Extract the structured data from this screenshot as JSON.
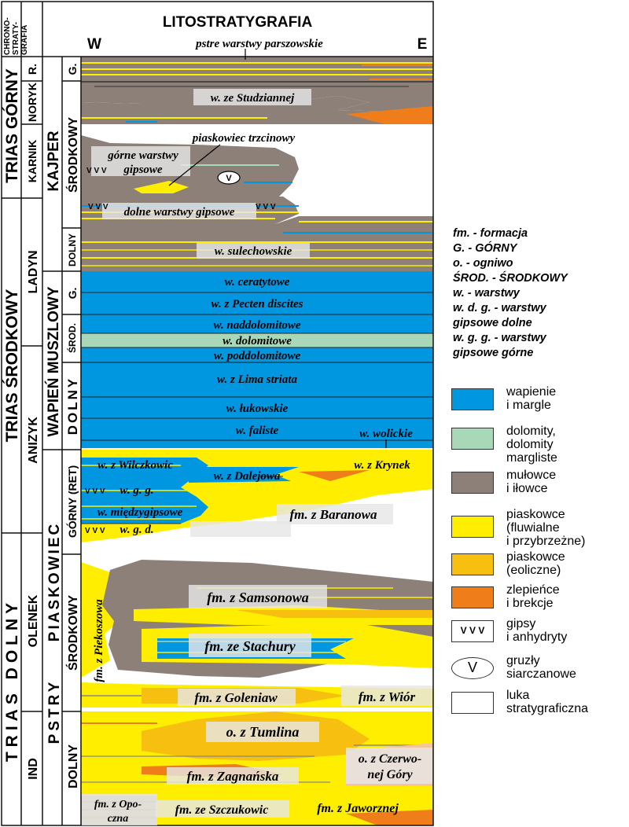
{
  "header": {
    "chronostrat_lines": [
      "CHRONO-",
      "STRATY-",
      "GRAFIA"
    ],
    "lithostrat_title": "LITOSTRATYGRAFIA",
    "west": "W",
    "east": "E",
    "top_unit": "pstre warstwy parszowskie"
  },
  "system_labels": {
    "upper": "TRIAS GÓRNY",
    "middle": "TRIAS ŚRODKOWY",
    "lower": "TRIAS DOLNY"
  },
  "stage_labels": {
    "rhaetian": "R.",
    "norian": "NORYK",
    "carnian": "KARNIK",
    "ladinian": "LADYN",
    "anisian": "ANIZYK",
    "olenekian": "OLENEK",
    "induan": "IND"
  },
  "group_labels": {
    "keuper": "KAJPER",
    "muschelkalk": "WAPIEŃ MUSZLOWY",
    "buntsandstein_1": "PIASKOWIEC",
    "buntsandstein_2": "PSTRY"
  },
  "subdivision_labels": {
    "keuper_upper": "G.",
    "keuper_middle": "ŚRODKOWY",
    "keuper_lower": "DOLNY",
    "mk_upper": "G.",
    "mk_middle": "ŚROD.",
    "mk_lower": "DOLNY",
    "bs_upper": "GÓRNY (RET)",
    "bs_middle": "ŚRODKOWY",
    "bs_lower": "DOLNY"
  },
  "units": {
    "studzianna": "w. ze Studziannej",
    "reed_sandstone": "piaskowiec trzcinowy",
    "upper_gypsum_1": "górne warstwy",
    "upper_gypsum_2": "gipsowe",
    "lower_gypsum": "dolne warstwy gipsowe",
    "sulechow": "w. sulechowskie",
    "ceratite": "w. ceratytowe",
    "pecten": "w. z Pecten discites",
    "naddolomit": "w. naddolomitowe",
    "dolomit": "w. dolomitowe",
    "poddolomit": "w. poddolomitowe",
    "lima": "w. z Lima striata",
    "lukow": "w. łukowskie",
    "faliste": "w. faliste",
    "wolica": "w. wolickie",
    "wilczkowice": "w. z Wilczkowic",
    "dalejow": "w. z Dalejowa",
    "krynek": "w. z Krynek",
    "wgg": "w. g. g.",
    "miedzygips": "w. międzygipsowe",
    "wgd": "w. g. d.",
    "baranow": "fm. z Baranowa",
    "samsonow": "fm. z Samsonowa",
    "stachura": "fm. ze Stachury",
    "piekoszow": "fm. z Piekoszowa",
    "goleniow": "fm. z Goleniaw",
    "wior": "fm. z Wiór",
    "tumlin": "o. z Tumlina",
    "czerwona_1": "o. z Czerwo-",
    "czerwona_2": "nej Góry",
    "zagnansk": "fm. z Zagnańska",
    "opoczno_1": "fm. z Opo-",
    "opoczno_2": "czna",
    "szczukowice": "fm. ze Szczukowic",
    "jaworzno": "fm. z Jaworznej"
  },
  "gypsum_marks": "V V V",
  "nodule_mark": "V",
  "abbreviations": [
    "fm. - formacja",
    "G. - GÓRNY",
    "o. - ogniwo",
    "ŚROD. - ŚRODKOWY",
    "w. - warstwy",
    "w. d. g. - warstwy",
    "gipsowe dolne",
    "w. g. g.  - warstwy",
    "gipsowe górne"
  ],
  "legend": [
    {
      "label": "wapienie\ni margle",
      "color": "#0096e0"
    },
    {
      "label": "dolomity,\ndolomity\nmargliste",
      "color": "#a8d8b8"
    },
    {
      "label": "mułowce\ni iłowce",
      "color": "#8c8079"
    },
    {
      "label": "piaskowce\n(fluwialne\ni przybrzeżne)",
      "color": "#ffee00"
    },
    {
      "label": "piaskowce\n(eoliczne)",
      "color": "#f7bf10"
    },
    {
      "label": "zlepieńce\ni brekcje",
      "color": "#ef7d1a"
    },
    {
      "label": "gipsy\ni anhydryty",
      "symbol": "V V V"
    },
    {
      "label": "gruzły\nsiarczanowe",
      "symbol": "V"
    },
    {
      "label": "luka\nstratygraficzna",
      "color": "#ffffff"
    }
  ],
  "colors": {
    "limestone": "#0096e0",
    "dolomite": "#a8d8b8",
    "mudstone": "#8c8079",
    "fluvial_sandstone": "#ffee00",
    "eolian_sandstone": "#f7bf10",
    "conglomerate": "#ef7d1a",
    "label_box": "#e6e6e6"
  }
}
